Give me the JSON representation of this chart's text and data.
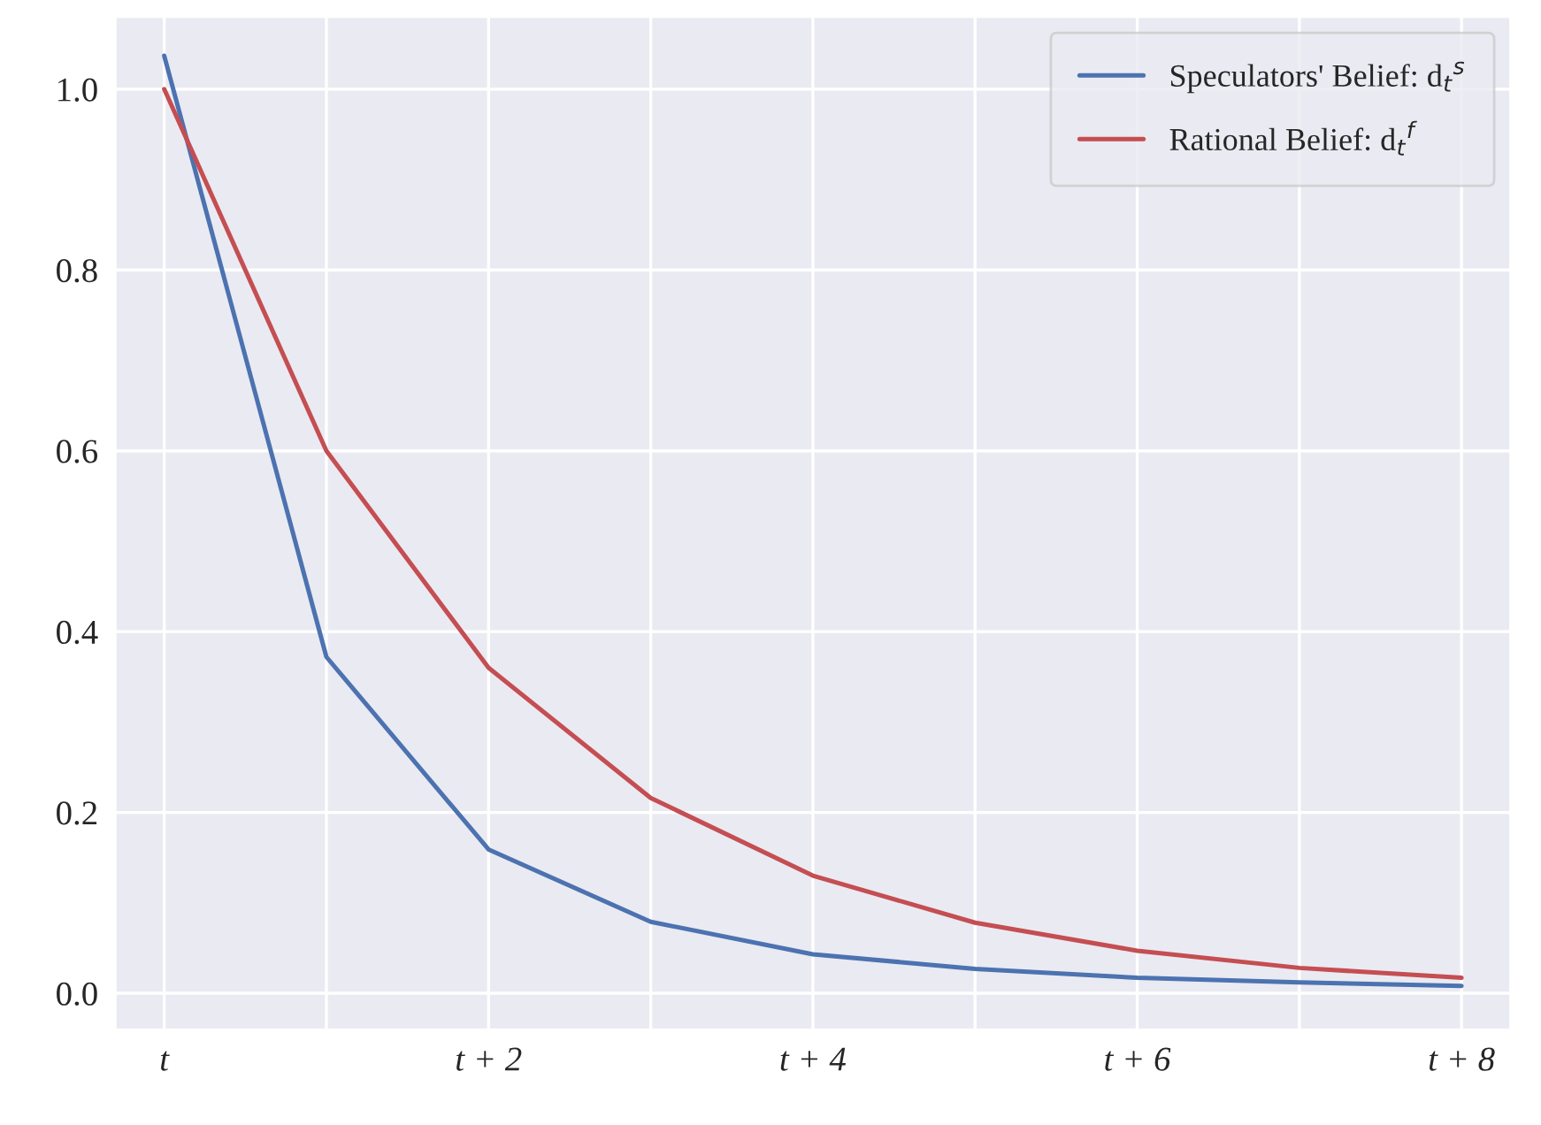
{
  "chart_data": {
    "type": "line",
    "x": [
      0,
      1,
      2,
      3,
      4,
      5,
      6,
      7,
      8
    ],
    "series": [
      {
        "name": "Speculators' Belief: d$_{t}$$^{s}$",
        "color": "#4c72b0",
        "values": [
          1.037,
          0.372,
          0.159,
          0.079,
          0.043,
          0.027,
          0.017,
          0.012,
          0.008
        ]
      },
      {
        "name": "Rational Belief: d$_{t}$$^{f}$",
        "color": "#c44e52",
        "values": [
          1.0,
          0.6,
          0.36,
          0.216,
          0.13,
          0.078,
          0.047,
          0.028,
          0.017
        ]
      }
    ],
    "xlim": [
      -0.3,
      8.3
    ],
    "ylim": [
      -0.04,
      1.08
    ],
    "xticks": [
      {
        "value": 0,
        "label": "t"
      },
      {
        "value": 1,
        "label": null
      },
      {
        "value": 2,
        "label": "t + 2"
      },
      {
        "value": 3,
        "label": null
      },
      {
        "value": 4,
        "label": "t + 4"
      },
      {
        "value": 5,
        "label": null
      },
      {
        "value": 6,
        "label": "t + 6"
      },
      {
        "value": 7,
        "label": null
      },
      {
        "value": 8,
        "label": "t + 8"
      }
    ],
    "yticks": [
      {
        "value": 0,
        "label": "0.0"
      },
      {
        "value": 0.2,
        "label": "0.2"
      },
      {
        "value": 0.4,
        "label": "0.4"
      },
      {
        "value": 0.6,
        "label": "0.6"
      },
      {
        "value": 0.8,
        "label": "0.8"
      },
      {
        "value": 1.0,
        "label": "1.0"
      }
    ],
    "grid": true,
    "legend": "top right",
    "marker": "none",
    "line_style": "solid"
  }
}
